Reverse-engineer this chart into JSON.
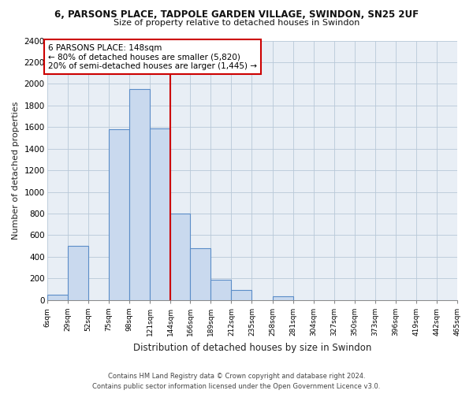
{
  "title": "6, PARSONS PLACE, TADPOLE GARDEN VILLAGE, SWINDON, SN25 2UF",
  "subtitle": "Size of property relative to detached houses in Swindon",
  "xlabel": "Distribution of detached houses by size in Swindon",
  "ylabel": "Number of detached properties",
  "footer_line1": "Contains HM Land Registry data © Crown copyright and database right 2024.",
  "footer_line2": "Contains public sector information licensed under the Open Government Licence v3.0.",
  "bin_labels": [
    "6sqm",
    "29sqm",
    "52sqm",
    "75sqm",
    "98sqm",
    "121sqm",
    "144sqm",
    "166sqm",
    "189sqm",
    "212sqm",
    "235sqm",
    "258sqm",
    "281sqm",
    "304sqm",
    "327sqm",
    "350sqm",
    "373sqm",
    "396sqm",
    "419sqm",
    "442sqm",
    "465sqm"
  ],
  "bar_heights": [
    50,
    500,
    0,
    1580,
    1950,
    1590,
    800,
    480,
    185,
    90,
    0,
    35,
    0,
    0,
    0,
    0,
    0,
    0,
    0,
    0
  ],
  "bar_color": "#c9d9ee",
  "bar_edge_color": "#5b8dc8",
  "ylim": [
    0,
    2400
  ],
  "yticks": [
    0,
    200,
    400,
    600,
    800,
    1000,
    1200,
    1400,
    1600,
    1800,
    2000,
    2200,
    2400
  ],
  "vline_x_index": 6,
  "property_line_label": "6 PARSONS PLACE: 148sqm",
  "annotation_line1": "← 80% of detached houses are smaller (5,820)",
  "annotation_line2": "20% of semi-detached houses are larger (1,445) →",
  "vline_color": "#cc0000",
  "annotation_box_edge": "#cc0000",
  "bin_edges": [
    6,
    29,
    52,
    75,
    98,
    121,
    144,
    166,
    189,
    212,
    235,
    258,
    281,
    304,
    327,
    350,
    373,
    396,
    419,
    442,
    465
  ]
}
